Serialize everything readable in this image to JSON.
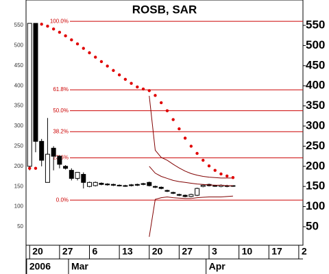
{
  "chart_data": {
    "type": "candlestick",
    "title": "ROSB, SAR",
    "x": [
      0,
      1,
      2,
      3,
      4,
      5,
      6,
      7,
      8,
      9,
      10,
      11,
      12,
      13,
      14,
      15,
      16,
      17,
      18,
      19,
      20,
      21,
      22,
      23,
      24,
      25,
      26,
      27,
      28,
      29,
      30,
      31,
      32,
      33,
      34
    ],
    "open": [
      200,
      555,
      262,
      160,
      245,
      225,
      200,
      190,
      170,
      180,
      150,
      152,
      158,
      156,
      155,
      153,
      152,
      154,
      155,
      157,
      160,
      150,
      148,
      140,
      135,
      130,
      128,
      125,
      128,
      150,
      155,
      152,
      150,
      152,
      151
    ],
    "high": [
      555,
      555,
      268,
      320,
      250,
      228,
      203,
      195,
      185,
      185,
      162,
      162,
      160,
      158,
      157,
      155,
      154,
      156,
      157,
      159,
      162,
      152,
      150,
      142,
      137,
      132,
      130,
      132,
      147,
      155,
      157,
      154,
      155,
      154,
      153
    ],
    "low": [
      190,
      235,
      200,
      160,
      190,
      195,
      192,
      165,
      165,
      145,
      148,
      150,
      153,
      152,
      151,
      150,
      149,
      150,
      151,
      153,
      150,
      146,
      143,
      136,
      131,
      126,
      123,
      123,
      126,
      148,
      150,
      149,
      148,
      148,
      149
    ],
    "close": [
      555,
      262,
      215,
      230,
      225,
      205,
      195,
      170,
      185,
      160,
      160,
      160,
      155,
      154,
      153,
      152,
      151,
      152,
      153,
      155,
      152,
      148,
      145,
      138,
      133,
      128,
      125,
      130,
      145,
      153,
      152,
      151,
      153,
      150,
      152
    ],
    "sar": [
      195,
      195,
      553,
      548,
      541,
      533,
      524,
      514,
      504,
      493,
      482,
      471,
      460,
      449,
      438,
      427,
      416,
      406,
      397,
      392,
      388,
      376,
      358,
      338,
      316,
      293,
      270,
      250,
      232,
      215,
      201,
      190,
      181,
      176,
      172
    ],
    "band_upper": [
      null,
      null,
      null,
      null,
      null,
      null,
      null,
      null,
      null,
      null,
      null,
      null,
      null,
      null,
      null,
      null,
      null,
      null,
      null,
      null,
      375,
      240,
      222,
      215,
      205,
      196,
      188,
      182,
      178,
      175,
      173,
      172,
      171,
      171,
      171
    ],
    "band_middle": [
      null,
      null,
      null,
      null,
      null,
      null,
      null,
      null,
      null,
      null,
      null,
      null,
      null,
      null,
      null,
      null,
      null,
      null,
      null,
      null,
      200,
      183,
      175,
      170,
      165,
      162,
      160,
      158,
      156,
      155,
      154,
      153,
      153,
      152,
      152
    ],
    "band_lower": [
      null,
      null,
      null,
      null,
      null,
      null,
      null,
      null,
      null,
      null,
      null,
      null,
      null,
      null,
      null,
      null,
      null,
      null,
      null,
      null,
      25,
      118,
      122,
      124,
      122,
      121,
      120,
      120,
      122,
      123,
      124,
      124,
      124,
      125,
      126
    ],
    "fib_levels": [
      {
        "value": 560,
        "label": "100.0%"
      },
      {
        "value": 390,
        "label": "61.8%"
      },
      {
        "value": 338,
        "label": "50.0%"
      },
      {
        "value": 286,
        "label": "38.2%"
      },
      {
        "value": 221,
        "label": "23.6%"
      },
      {
        "value": 116,
        "label": "0.0%"
      }
    ],
    "xlim": [
      -0.6,
      45.7
    ],
    "xticks": [
      {
        "value": 0,
        "label": "20"
      },
      {
        "value": 5,
        "label": "27"
      },
      {
        "value": 10,
        "label": "6"
      },
      {
        "value": 15,
        "label": "13"
      },
      {
        "value": 20,
        "label": "20"
      },
      {
        "value": 25,
        "label": "27"
      },
      {
        "value": 30,
        "label": "3"
      },
      {
        "value": 35,
        "label": "10"
      },
      {
        "value": 40,
        "label": "17"
      },
      {
        "value": 45,
        "label": "2"
      }
    ],
    "periods": [
      {
        "value": 0,
        "label": "2006"
      },
      {
        "value": 7,
        "label": "Mar"
      },
      {
        "value": 30,
        "label": "Apr"
      }
    ],
    "ylim": [
      4,
      613
    ],
    "yticks": [
      50,
      100,
      150,
      200,
      250,
      300,
      350,
      400,
      450,
      500,
      550
    ],
    "sar_color": "#e00000",
    "fib_color": "#cc0000",
    "band_color": "#800000"
  }
}
